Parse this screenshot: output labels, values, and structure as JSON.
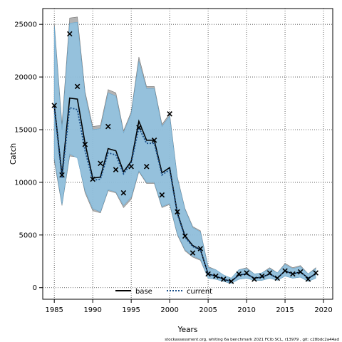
{
  "chart_data": {
    "type": "line",
    "title": "",
    "xlabel": "Years",
    "ylabel": "Catch",
    "xlim": [
      1983.5,
      2021.2
    ],
    "ylim": [
      -1100,
      26500
    ],
    "x_ticks": [
      1985,
      1990,
      1995,
      2000,
      2005,
      2010,
      2015,
      2020
    ],
    "y_ticks": [
      0,
      5000,
      10000,
      15000,
      20000,
      25000
    ],
    "grid": true,
    "legend_position": "bottom-center",
    "legend": [
      {
        "name": "base",
        "style": "solid",
        "color": "#000000"
      },
      {
        "name": "current",
        "style": "dotted",
        "color": "#1a4f8a"
      }
    ],
    "x": [
      1985,
      1986,
      1987,
      1988,
      1989,
      1990,
      1991,
      1992,
      1993,
      1994,
      1995,
      1996,
      1997,
      1998,
      1999,
      2000,
      2001,
      2002,
      2003,
      2004,
      2005,
      2006,
      2007,
      2008,
      2009,
      2010,
      2011,
      2012,
      2013,
      2014,
      2015,
      2016,
      2017,
      2018,
      2019
    ],
    "series": [
      {
        "name": "base",
        "values": [
          17300,
          10700,
          18000,
          17900,
          13700,
          10400,
          10500,
          13200,
          13000,
          11000,
          12000,
          15800,
          14000,
          14000,
          10900,
          11400,
          7100,
          4900,
          4000,
          3600,
          1300,
          1100,
          800,
          600,
          1200,
          1300,
          900,
          1000,
          1300,
          900,
          1600,
          1300,
          1500,
          900,
          1300
        ],
        "lower": [
          12000,
          7800,
          12500,
          12400,
          9000,
          7300,
          7100,
          9200,
          9000,
          7600,
          8400,
          11000,
          9900,
          9900,
          7600,
          7900,
          5000,
          3500,
          2900,
          2600,
          900,
          800,
          600,
          400,
          800,
          900,
          700,
          700,
          900,
          700,
          1100,
          900,
          1000,
          600,
          900
        ],
        "upper": [
          25100,
          15500,
          25600,
          25700,
          18600,
          15300,
          15400,
          18800,
          18500,
          14900,
          16700,
          21900,
          19100,
          19100,
          15500,
          16500,
          10500,
          7500,
          5800,
          5400,
          2000,
          1700,
          1200,
          900,
          1700,
          1900,
          1300,
          1400,
          1900,
          1400,
          2300,
          1900,
          2100,
          1300,
          1900
        ]
      },
      {
        "name": "current",
        "values": [
          17100,
          10400,
          17100,
          16900,
          13000,
          10200,
          10300,
          12800,
          12600,
          10800,
          11800,
          15200,
          13700,
          13700,
          10700,
          11200,
          7000,
          4800,
          3900,
          3600,
          1300,
          1100,
          800,
          600,
          1200,
          1300,
          900,
          1000,
          1300,
          900,
          1600,
          1300,
          1500,
          900,
          1300
        ],
        "lower": [
          12300,
          7900,
          12700,
          12300,
          9200,
          7500,
          7200,
          9300,
          9100,
          7800,
          8600,
          11100,
          10000,
          10000,
          7700,
          8000,
          5100,
          3600,
          3000,
          2700,
          900,
          800,
          600,
          400,
          800,
          900,
          700,
          700,
          900,
          700,
          1100,
          900,
          1000,
          600,
          900
        ],
        "upper": [
          24800,
          15000,
          25100,
          25200,
          18300,
          15000,
          15100,
          18500,
          18200,
          14700,
          16500,
          21500,
          18900,
          18900,
          15300,
          16300,
          10400,
          7400,
          5700,
          5300,
          1900,
          1700,
          1200,
          900,
          1700,
          1800,
          1300,
          1400,
          1800,
          1400,
          2200,
          1800,
          2000,
          1300,
          1800
        ]
      }
    ],
    "observed": {
      "name": "observed catch",
      "marker": "x",
      "x": [
        1985,
        1986,
        1987,
        1988,
        1989,
        1990,
        1991,
        1992,
        1993,
        1994,
        1995,
        1996,
        1997,
        1998,
        1999,
        2000,
        2001,
        2002,
        2003,
        2004,
        2005,
        2006,
        2007,
        2008,
        2009,
        2010,
        2011,
        2012,
        2013,
        2014,
        2015,
        2016,
        2017,
        2018,
        2019
      ],
      "values": [
        17300,
        10700,
        24100,
        19100,
        13600,
        10300,
        11800,
        15300,
        11200,
        9000,
        11500,
        15200,
        11500,
        14000,
        8800,
        16500,
        7200,
        4900,
        3300,
        3700,
        1300,
        1100,
        800,
        600,
        1300,
        1400,
        800,
        1100,
        1400,
        900,
        1600,
        1300,
        1500,
        800,
        1400
      ]
    },
    "colors": {
      "base_band": "#8a8a8a",
      "current_band": "#8fc3e3",
      "overlap_band": "#a0c2d3",
      "current_line": "#1a4f8a",
      "grid": "#444444"
    }
  },
  "footer": "stockassessment.org, whiting 6a benchmark 2021 FCIb SCL, r13979 , git: c28bdc2a44ad"
}
